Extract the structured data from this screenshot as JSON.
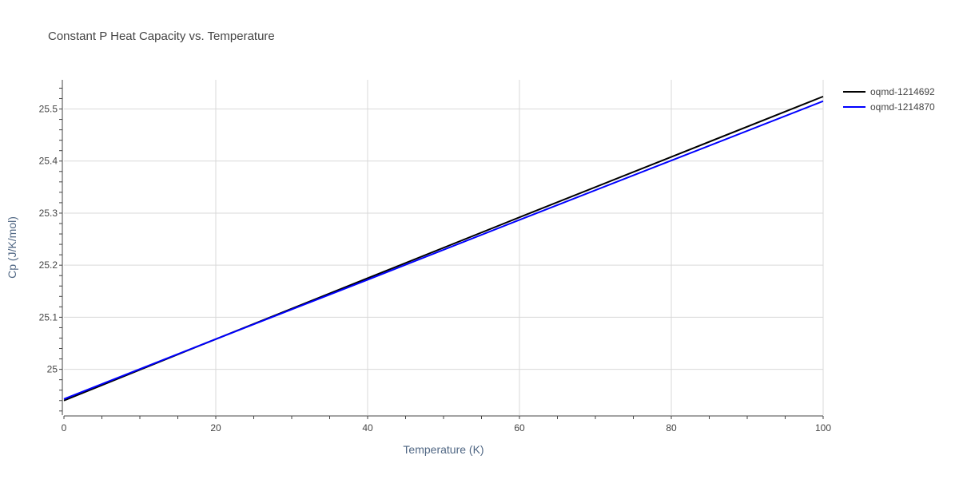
{
  "chart_data": {
    "type": "line",
    "title": "Constant P Heat Capacity vs. Temperature",
    "xlabel": "Temperature (K)",
    "ylabel": "Cp (J/K/mol)",
    "xlim": [
      0,
      100
    ],
    "ylim": [
      24.912,
      25.556
    ],
    "x_ticks": [
      0,
      20,
      40,
      60,
      80,
      100
    ],
    "x_tick_labels": [
      "0",
      "20",
      "40",
      "60",
      "80",
      "100"
    ],
    "y_ticks": [
      25.0,
      25.1,
      25.2,
      25.3,
      25.4,
      25.5
    ],
    "y_tick_labels": [
      "25",
      "25.1",
      "25.2",
      "25.3",
      "25.4",
      "25.5"
    ],
    "grid": true,
    "legend_position": "top-right",
    "series": [
      {
        "name": "oqmd-1214692",
        "color": "#000000",
        "x": [
          0,
          20,
          40,
          60,
          80,
          100
        ],
        "y": [
          24.94,
          25.058,
          25.175,
          25.292,
          25.408,
          25.524
        ]
      },
      {
        "name": "oqmd-1214870",
        "color": "#0000ff",
        "x": [
          0,
          20,
          40,
          60,
          80,
          100
        ],
        "y": [
          24.943,
          25.058,
          25.172,
          25.287,
          25.401,
          25.515
        ]
      }
    ]
  }
}
